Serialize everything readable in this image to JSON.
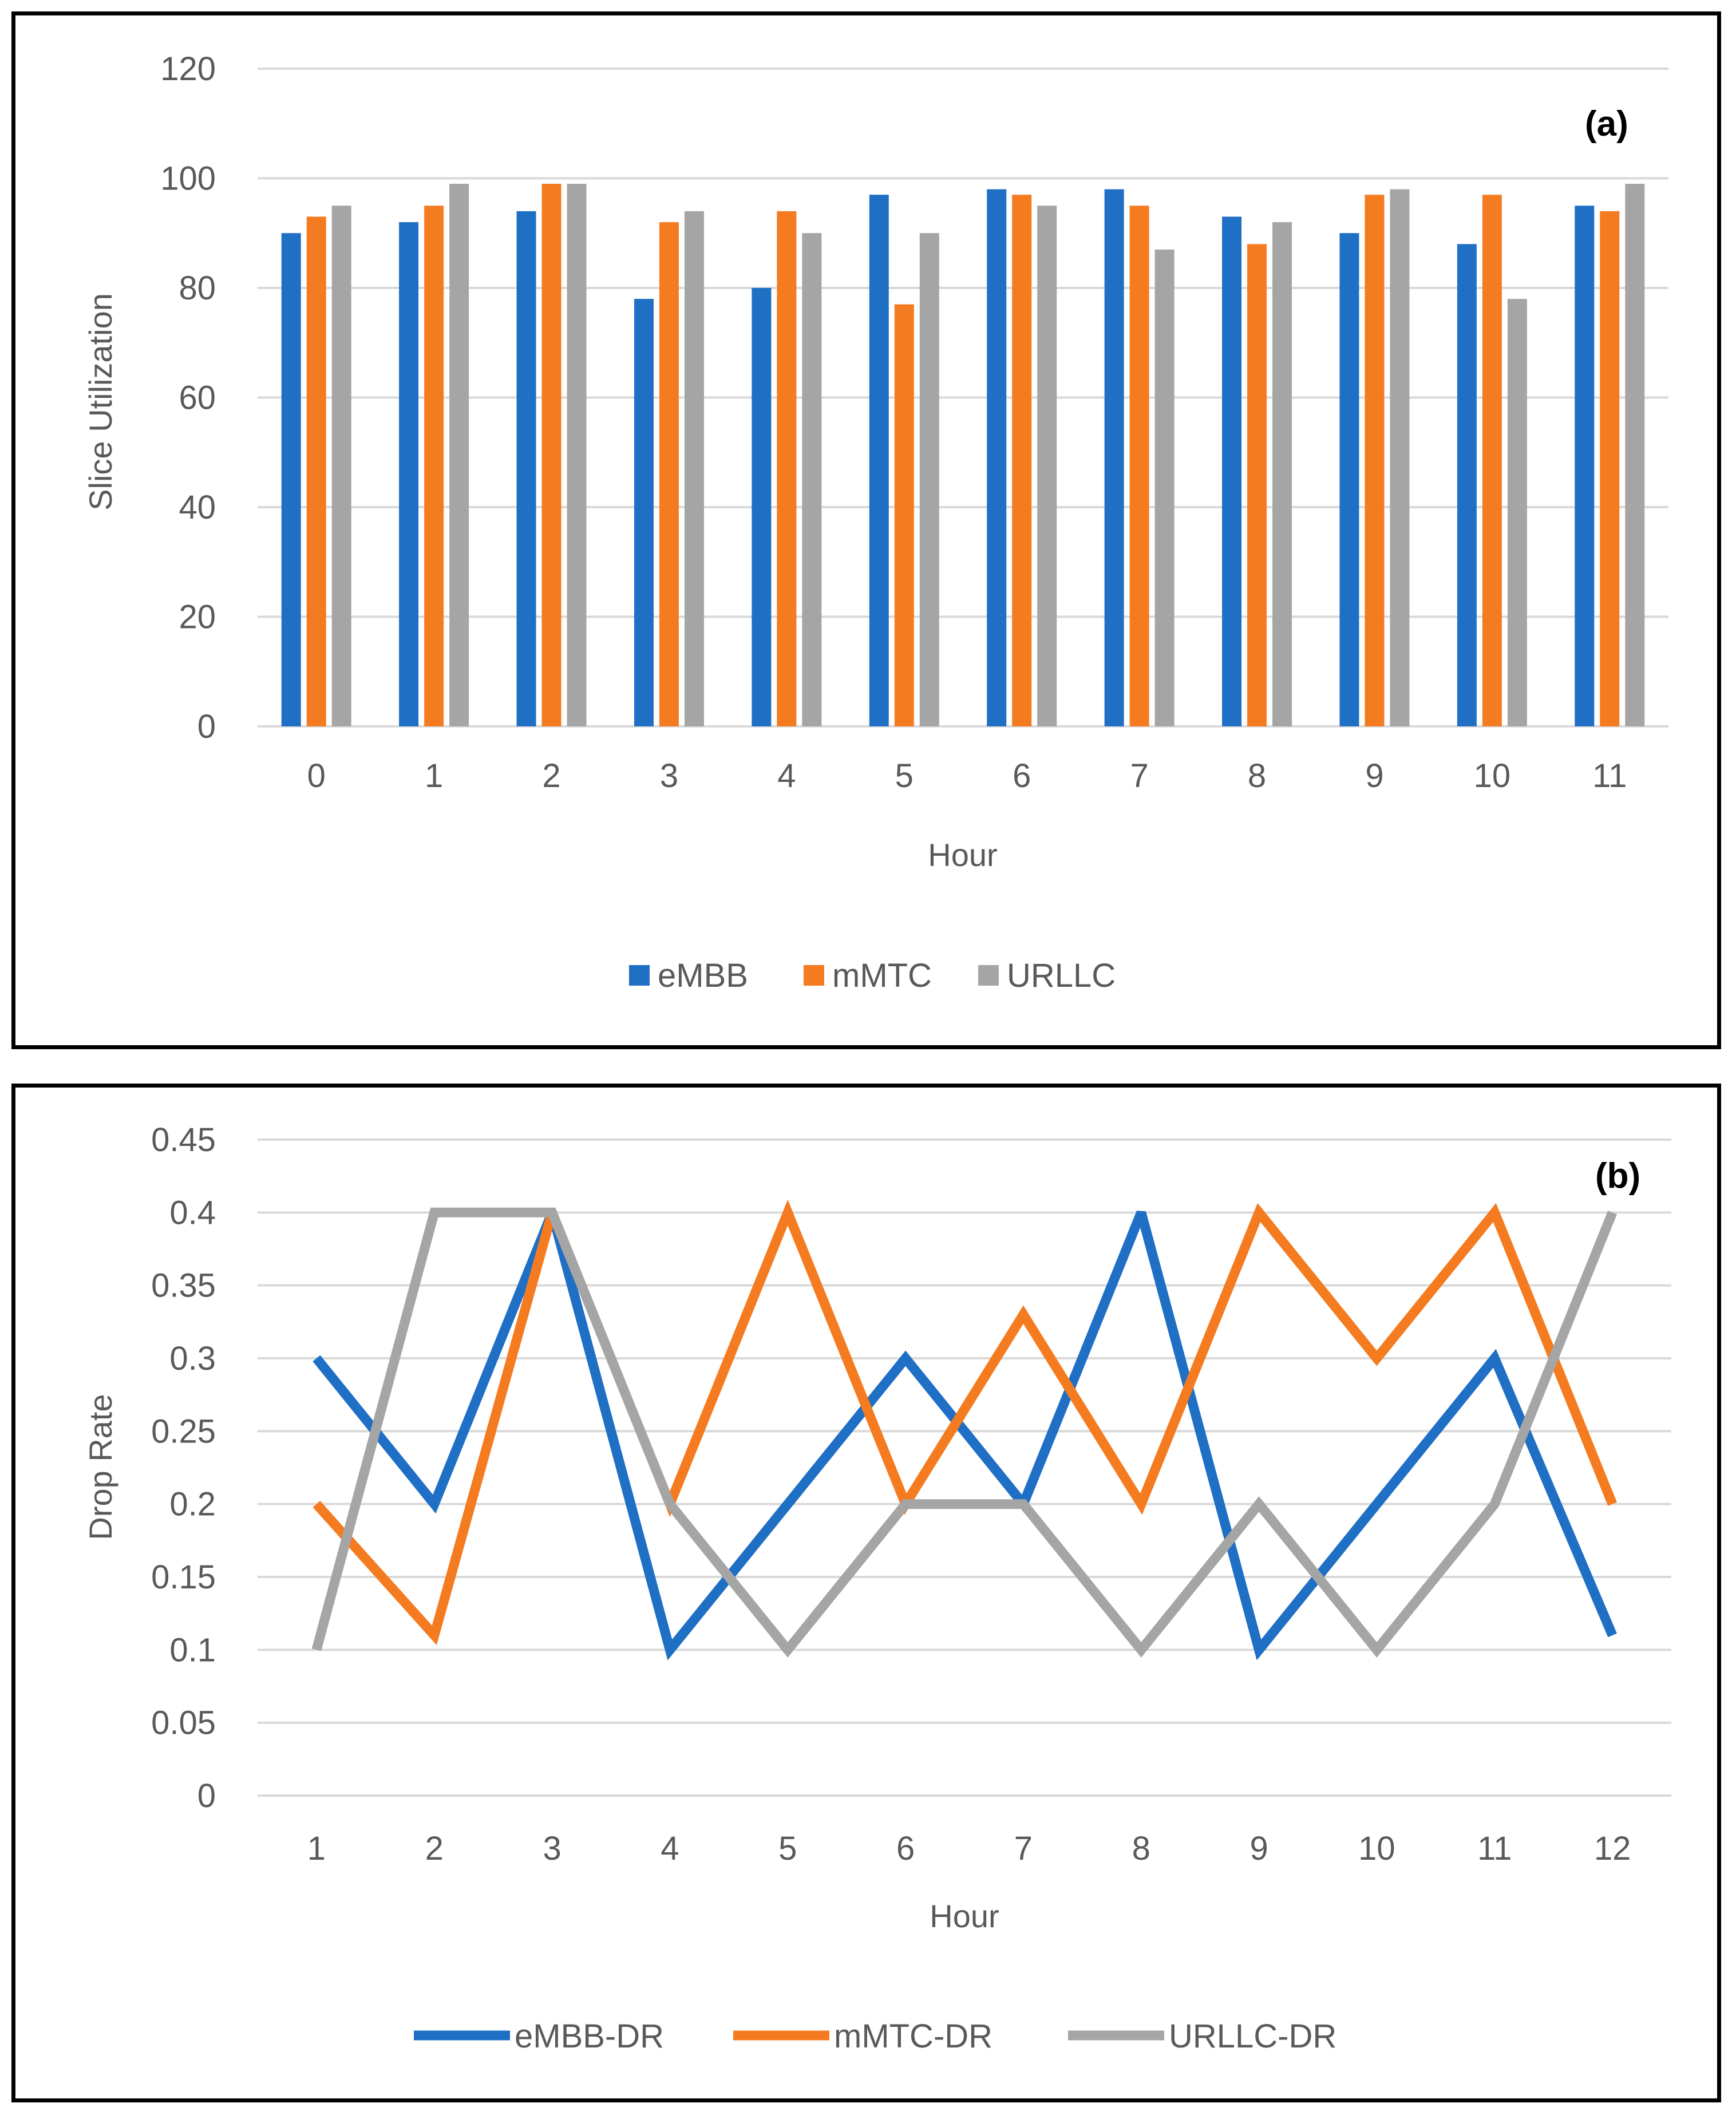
{
  "chart_data": [
    {
      "type": "bar",
      "panel_label": "(a)",
      "title": "",
      "xlabel": "Hour",
      "ylabel": "Slice Utilization",
      "ylim": [
        0,
        120
      ],
      "yticks": [
        "0",
        "20",
        "40",
        "60",
        "80",
        "100",
        "120"
      ],
      "yticks_values": [
        0,
        20,
        40,
        60,
        80,
        100,
        120
      ],
      "categories": [
        "0",
        "1",
        "2",
        "3",
        "4",
        "5",
        "6",
        "7",
        "8",
        "9",
        "10",
        "11"
      ],
      "grid": true,
      "legend_position": "bottom",
      "series": [
        {
          "name": "eMBB",
          "color": "#1F6FC5",
          "values": [
            90,
            92,
            94,
            78,
            80,
            97,
            98,
            98,
            93,
            90,
            88,
            95
          ]
        },
        {
          "name": "mMTC",
          "color": "#F47B20",
          "values": [
            93,
            95,
            99,
            92,
            94,
            77,
            97,
            95,
            88,
            97,
            97,
            94
          ]
        },
        {
          "name": "URLLC",
          "color": "#A5A5A5",
          "values": [
            95,
            99,
            99,
            94,
            90,
            90,
            95,
            87,
            92,
            98,
            78,
            99
          ]
        }
      ]
    },
    {
      "type": "line",
      "panel_label": "(b)",
      "title": "",
      "xlabel": "Hour",
      "ylabel": "Drop Rate",
      "ylim": [
        0,
        0.45
      ],
      "yticks": [
        "0",
        "0.05",
        "0.1",
        "0.15",
        "0.2",
        "0.25",
        "0.3",
        "0.35",
        "0.4",
        "0.45"
      ],
      "yticks_values": [
        0,
        0.05,
        0.1,
        0.15,
        0.2,
        0.25,
        0.3,
        0.35,
        0.4,
        0.45
      ],
      "categories": [
        "1",
        "2",
        "3",
        "4",
        "5",
        "6",
        "7",
        "8",
        "9",
        "10",
        "11",
        "12"
      ],
      "grid": true,
      "legend_position": "bottom",
      "series": [
        {
          "name": "eMBB-DR",
          "color": "#1F6FC5",
          "values": [
            0.3,
            0.2,
            0.4,
            0.1,
            0.2,
            0.3,
            0.2,
            0.4,
            0.1,
            0.2,
            0.3,
            0.11
          ]
        },
        {
          "name": "mMTC-DR",
          "color": "#F47B20",
          "values": [
            0.2,
            0.11,
            0.4,
            0.2,
            0.4,
            0.2,
            0.33,
            0.2,
            0.4,
            0.3,
            0.4,
            0.2
          ]
        },
        {
          "name": "URLLC-DR",
          "color": "#A5A5A5",
          "values": [
            0.1,
            0.4,
            0.4,
            0.2,
            0.1,
            0.2,
            0.2,
            0.1,
            0.2,
            0.1,
            0.2,
            0.4
          ]
        }
      ]
    }
  ]
}
